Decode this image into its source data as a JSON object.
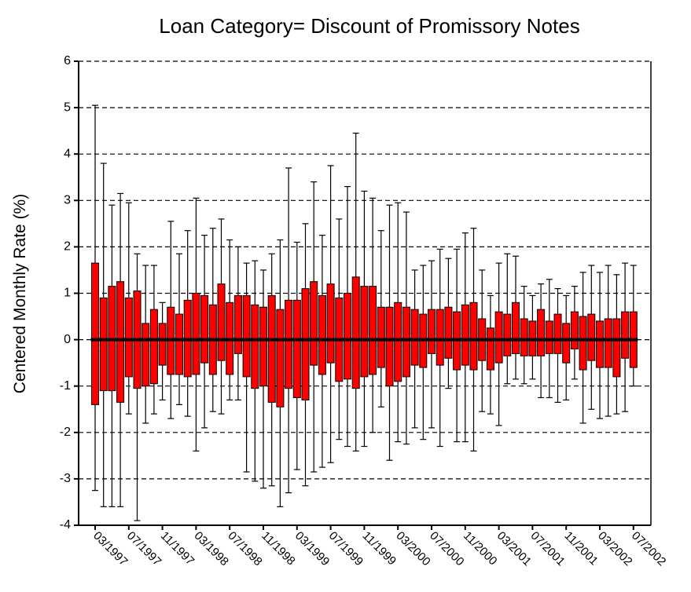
{
  "chart_data": {
    "type": "box",
    "title": "Loan Category= Discount of Promissory Notes",
    "y_label": "Centered Monthly Rate (%)",
    "categories": [
      "03/1997",
      null,
      null,
      null,
      "07/1997",
      null,
      null,
      null,
      "11/1997",
      null,
      null,
      null,
      "03/1998",
      null,
      null,
      null,
      "07/1998",
      null,
      null,
      null,
      "11/1998",
      null,
      null,
      null,
      "03/1999",
      null,
      null,
      null,
      "07/1999",
      null,
      null,
      null,
      "11/1999",
      null,
      null,
      null,
      "03/2000",
      null,
      null,
      null,
      "07/2000",
      null,
      null,
      null,
      "11/2000",
      null,
      null,
      null,
      "03/2001",
      null,
      null,
      null,
      "07/2001",
      null,
      null,
      null,
      "11/2001",
      null,
      null,
      null,
      "03/2002",
      null,
      null,
      null,
      "07/2002"
    ],
    "color": "#ff0000",
    "low": [
      -3.25,
      -3.6,
      -3.6,
      -3.6,
      -1.6,
      -3.9,
      -1.8,
      -1.6,
      -1.3,
      -1.7,
      -1.4,
      -1.65,
      -2.4,
      -1.9,
      -1.55,
      -1.6,
      -1.3,
      -1.3,
      -2.85,
      -3.05,
      -3.2,
      -3.15,
      -3.6,
      -3.3,
      -2.8,
      -3.15,
      -2.85,
      -2.75,
      -2.65,
      -2.15,
      -2.3,
      -2.4,
      -2.3,
      -2.0,
      -1.45,
      -2.6,
      -2.2,
      -2.25,
      -1.9,
      -2.15,
      -1.9,
      -2.3,
      -1.05,
      -2.2,
      -2.2,
      -2.4,
      -1.55,
      -1.6,
      -1.85,
      -0.95,
      -0.85,
      -0.95,
      -0.85,
      -1.25,
      -1.25,
      -1.35,
      -1.3,
      -0.85,
      -1.8,
      -1.5,
      -1.7,
      -1.65,
      -1.6,
      -1.55,
      -1.0
    ],
    "q1": [
      -1.4,
      -1.1,
      -1.1,
      -1.35,
      -0.8,
      -1.05,
      -1.0,
      -0.95,
      -0.55,
      -0.75,
      -0.75,
      -0.8,
      -0.75,
      -0.5,
      -0.75,
      -0.45,
      -0.75,
      -0.3,
      -0.8,
      -1.05,
      -1.0,
      -1.35,
      -1.45,
      -1.05,
      -1.25,
      -1.3,
      -0.55,
      -0.75,
      -0.5,
      -0.9,
      -0.85,
      -1.05,
      -0.8,
      -0.75,
      -0.6,
      -1.0,
      -0.9,
      -0.8,
      -0.55,
      -0.6,
      -0.3,
      -0.55,
      -0.4,
      -0.65,
      -0.55,
      -0.65,
      -0.45,
      -0.65,
      -0.5,
      -0.35,
      -0.3,
      -0.35,
      -0.35,
      -0.35,
      -0.3,
      -0.3,
      -0.5,
      -0.2,
      -0.65,
      -0.45,
      -0.6,
      -0.6,
      -0.8,
      -0.4,
      -0.6
    ],
    "median": [
      0,
      0,
      0,
      0,
      0,
      0,
      0,
      0,
      0,
      0,
      0,
      0,
      0,
      0,
      0,
      0,
      0,
      0,
      0,
      0,
      0,
      0,
      0,
      0,
      0,
      0,
      0,
      0,
      0,
      0,
      0,
      0,
      0,
      0,
      0,
      0,
      0,
      0,
      0,
      0,
      0,
      0,
      0,
      0,
      0,
      0,
      0,
      0,
      0,
      0,
      0,
      0,
      0,
      0,
      0,
      0,
      0,
      0,
      0,
      0,
      0,
      0,
      0,
      0,
      0
    ],
    "q3": [
      1.65,
      0.9,
      1.15,
      1.25,
      0.9,
      1.05,
      0.35,
      0.65,
      0.35,
      0.7,
      0.55,
      0.85,
      1.0,
      0.95,
      0.75,
      1.2,
      0.8,
      0.95,
      0.95,
      0.75,
      0.7,
      0.95,
      0.65,
      0.85,
      0.85,
      1.1,
      1.25,
      0.95,
      1.2,
      0.9,
      1.0,
      1.35,
      1.15,
      1.15,
      0.7,
      0.7,
      0.8,
      0.7,
      0.65,
      0.55,
      0.65,
      0.65,
      0.7,
      0.6,
      0.75,
      0.8,
      0.45,
      0.25,
      0.6,
      0.55,
      0.8,
      0.45,
      0.4,
      0.65,
      0.4,
      0.55,
      0.35,
      0.6,
      0.5,
      0.55,
      0.4,
      0.45,
      0.45,
      0.6,
      0.6
    ],
    "high": [
      5.05,
      3.8,
      2.9,
      3.15,
      2.95,
      1.85,
      1.6,
      1.6,
      0.8,
      2.55,
      1.85,
      2.35,
      3.05,
      2.25,
      2.4,
      2.6,
      2.15,
      2.0,
      1.65,
      1.7,
      1.5,
      1.85,
      2.15,
      3.7,
      2.1,
      2.5,
      3.4,
      2.25,
      3.75,
      2.6,
      3.3,
      4.45,
      3.2,
      3.05,
      2.35,
      2.9,
      2.95,
      2.75,
      1.5,
      1.6,
      1.7,
      1.95,
      1.75,
      1.95,
      2.3,
      2.4,
      1.5,
      0.95,
      1.65,
      1.85,
      1.8,
      1.15,
      0.95,
      1.2,
      1.3,
      1.1,
      0.95,
      1.15,
      1.45,
      1.6,
      1.45,
      1.6,
      1.4,
      1.65,
      1.6
    ],
    "ylim": [
      -4,
      6
    ],
    "yticks": [
      -4,
      -3,
      -2,
      -1,
      0,
      1,
      2,
      3,
      4,
      5,
      6
    ],
    "grid": true
  }
}
